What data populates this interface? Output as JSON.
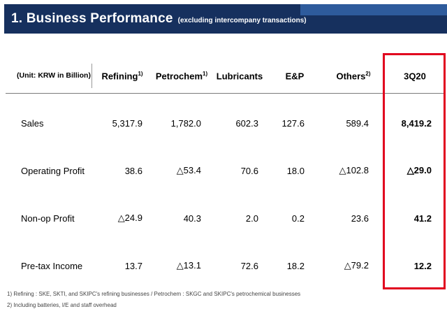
{
  "header": {
    "title": "1. Business Performance",
    "subtitle": "(excluding intercompany transactions)"
  },
  "table": {
    "unit_label": "(Unit: KRW in Billion)",
    "columns": [
      {
        "label": "Refining",
        "sup": "1)"
      },
      {
        "label": "Petrochem",
        "sup": "1)"
      },
      {
        "label": "Lubricants",
        "sup": ""
      },
      {
        "label": "E&P",
        "sup": ""
      },
      {
        "label": "Others",
        "sup": "2)"
      },
      {
        "label": "3Q20",
        "sup": ""
      }
    ],
    "rows": [
      {
        "label": "Sales",
        "values": [
          "5,317.9",
          "1,782.0",
          "602.3",
          "127.6",
          "589.4",
          "8,419.2"
        ]
      },
      {
        "label": "Operating Profit",
        "values": [
          "38.6",
          "△53.4",
          "70.6",
          "18.0",
          "△102.8",
          "△29.0"
        ]
      },
      {
        "label": "Non-op Profit",
        "values": [
          "△24.9",
          "40.3",
          "2.0",
          "0.2",
          "23.6",
          "41.2"
        ]
      },
      {
        "label": "Pre-tax Income",
        "values": [
          "13.7",
          "△13.1",
          "72.6",
          "18.2",
          "△79.2",
          "12.2"
        ]
      }
    ]
  },
  "footnotes": [
    "1) Refining : SKE, SKTI, and SKIPC's refining businesses / Petrochem : SKGC and SKIPC's petrochemical businesses",
    "2) Including batteries, I/E and staff overhead"
  ],
  "colors": {
    "header_navy": "#16305E",
    "header_accent_blue": "#2E5B9C",
    "highlight_red": "#E1001E"
  }
}
